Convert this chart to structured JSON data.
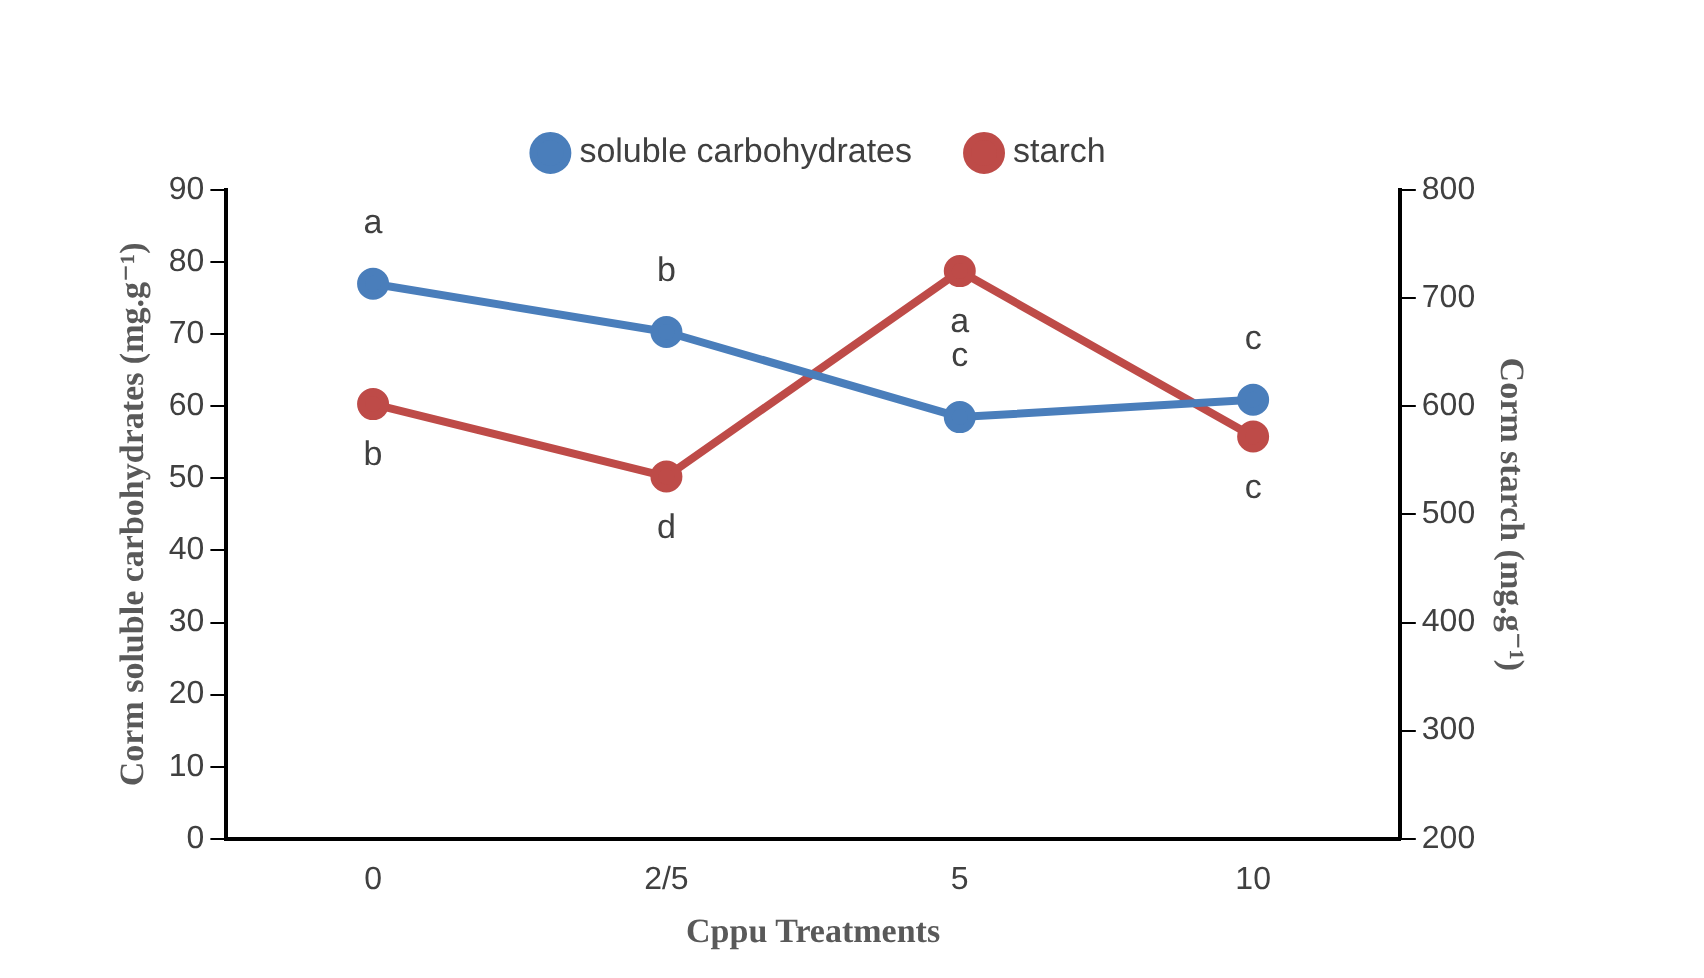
{
  "chart_data": {
    "type": "line",
    "xlabel": "Cppu Treatments",
    "ylabel": "Corm soluble carbohydrates (mg.g⁻¹)",
    "y2label": "Corm starch (mg.g⁻¹)",
    "categories": [
      "0",
      "2/5",
      "5",
      "10"
    ],
    "series": [
      {
        "name": "soluble carbohydrates",
        "color": "#4a7ebb",
        "values": [
          77,
          70.3,
          58.5,
          60.9
        ]
      },
      {
        "name": "starch",
        "color": "#be4b48",
        "axis": "y2",
        "values": [
          602,
          535,
          725,
          572
        ]
      }
    ],
    "ylim": [
      0,
      90
    ],
    "yticks": [
      0,
      10,
      20,
      30,
      40,
      50,
      60,
      70,
      80,
      90
    ],
    "y2lim": [
      200,
      800
    ],
    "y2ticks": [
      200,
      300,
      400,
      500,
      600,
      700,
      800
    ],
    "marker": "circle",
    "line_style": "solid",
    "legend": "top",
    "grid": false,
    "annotations": [
      {
        "text": "a",
        "x": "0",
        "y": 77
      },
      {
        "text": "b",
        "x": "2/5",
        "y": 70.3
      },
      {
        "text": "c",
        "x": "5",
        "y": 58.5
      },
      {
        "text": "c",
        "x": "10",
        "y": 60.9
      },
      {
        "text": "b",
        "x": "0",
        "y": 60.3
      },
      {
        "text": "d",
        "x": "2/5",
        "y": 50.3
      },
      {
        "text": "a",
        "x": "5",
        "y": 78.8
      },
      {
        "text": "c",
        "x": "10",
        "y": 55.8
      }
    ]
  }
}
